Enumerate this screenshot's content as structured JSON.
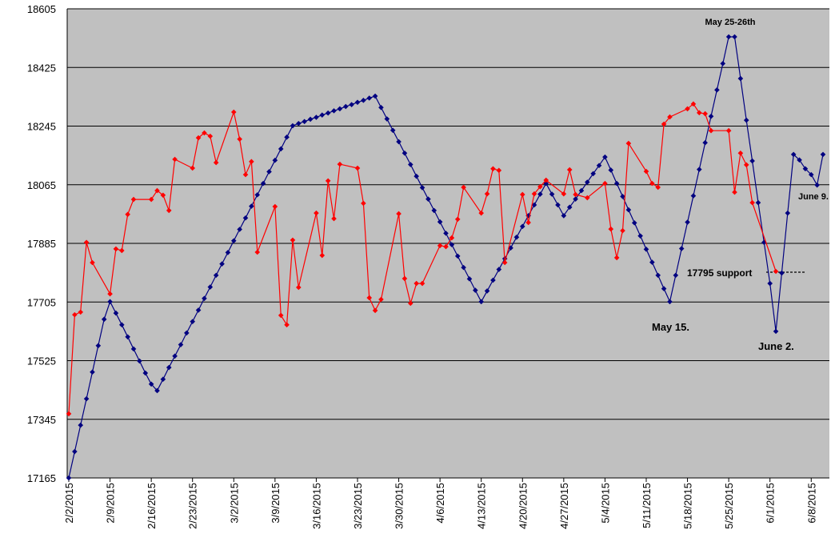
{
  "chart_data": {
    "type": "line",
    "ylim": [
      17165,
      18605
    ],
    "yticks": [
      17165,
      17345,
      17525,
      17705,
      17885,
      18065,
      18245,
      18425,
      18605
    ],
    "xlim": [
      "2/2/2015",
      "6/10/2015"
    ],
    "xticks": [
      "2/2/2015",
      "2/9/2015",
      "2/16/2015",
      "2/23/2015",
      "3/2/2015",
      "3/9/2015",
      "3/16/2015",
      "3/23/2015",
      "3/30/2015",
      "4/6/2015",
      "4/13/2015",
      "4/20/2015",
      "4/27/2015",
      "5/4/2015",
      "5/11/2015",
      "5/18/2015",
      "5/25/2015",
      "6/1/2015",
      "6/8/2015"
    ],
    "grid": true,
    "annotations": [
      "May 25-26th",
      "17795 support",
      "May 15.",
      "June 2.",
      "June 9."
    ],
    "series": [
      {
        "color": "#000080",
        "x": [
          "2/2/2015",
          "2/3/2015",
          "2/4/2015",
          "2/5/2015",
          "2/6/2015",
          "2/7/2015",
          "2/8/2015",
          "2/9/2015",
          "2/10/2015",
          "2/11/2015",
          "2/12/2015",
          "2/13/2015",
          "2/14/2015",
          "2/15/2015",
          "2/16/2015",
          "2/17/2015",
          "2/18/2015",
          "2/19/2015",
          "2/20/2015",
          "2/21/2015",
          "2/22/2015",
          "2/23/2015",
          "2/24/2015",
          "2/25/2015",
          "2/26/2015",
          "2/27/2015",
          "2/28/2015",
          "3/1/2015",
          "3/2/2015",
          "3/3/2015",
          "3/4/2015",
          "3/5/2015",
          "3/6/2015",
          "3/7/2015",
          "3/8/2015",
          "3/9/2015",
          "3/10/2015",
          "3/11/2015",
          "3/12/2015",
          "3/13/2015",
          "3/14/2015",
          "3/15/2015",
          "3/16/2015",
          "3/17/2015",
          "3/18/2015",
          "3/19/2015",
          "3/20/2015",
          "3/21/2015",
          "3/22/2015",
          "3/23/2015",
          "3/24/2015",
          "3/25/2015",
          "3/26/2015",
          "3/27/2015",
          "3/28/2015",
          "3/29/2015",
          "3/30/2015",
          "3/31/2015",
          "4/1/2015",
          "4/2/2015",
          "4/3/2015",
          "4/4/2015",
          "4/5/2015",
          "4/6/2015",
          "4/7/2015",
          "4/8/2015",
          "4/9/2015",
          "4/10/2015",
          "4/11/2015",
          "4/12/2015",
          "4/13/2015",
          "4/14/2015",
          "4/15/2015",
          "4/16/2015",
          "4/17/2015",
          "4/18/2015",
          "4/19/2015",
          "4/20/2015",
          "4/21/2015",
          "4/22/2015",
          "4/23/2015",
          "4/24/2015",
          "4/25/2015",
          "4/26/2015",
          "4/27/2015",
          "4/28/2015",
          "4/29/2015",
          "4/30/2015",
          "5/1/2015",
          "5/2/2015",
          "5/3/2015",
          "5/4/2015",
          "5/5/2015",
          "5/6/2015",
          "5/7/2015",
          "5/8/2015",
          "5/9/2015",
          "5/10/2015",
          "5/11/2015",
          "5/12/2015",
          "5/13/2015",
          "5/14/2015",
          "5/15/2015",
          "5/16/2015",
          "5/17/2015",
          "5/18/2015",
          "5/19/2015",
          "5/20/2015",
          "5/21/2015",
          "5/22/2015",
          "5/23/2015",
          "5/24/2015",
          "5/25/2015",
          "5/26/2015",
          "5/27/2015",
          "5/28/2015",
          "5/29/2015",
          "5/30/2015",
          "5/31/2015",
          "6/1/2015",
          "6/2/2015",
          "6/3/2015",
          "6/4/2015",
          "6/5/2015",
          "6/6/2015",
          "6/7/2015",
          "6/8/2015",
          "6/9/2015",
          "6/10/2015"
        ],
        "values": [
          17165,
          17246,
          17327,
          17408,
          17490,
          17571,
          17652,
          17706,
          17671,
          17635,
          17598,
          17561,
          17524,
          17487,
          17453,
          17433,
          17468,
          17504,
          17539,
          17574,
          17610,
          17645,
          17680,
          17716,
          17751,
          17787,
          17822,
          17857,
          17893,
          17928,
          17963,
          17999,
          18034,
          18069,
          18105,
          18140,
          18175,
          18211,
          18246,
          18253,
          18259,
          18266,
          18272,
          18279,
          18285,
          18292,
          18298,
          18305,
          18311,
          18318,
          18324,
          18331,
          18337,
          18302,
          18267,
          18232,
          18197,
          18162,
          18127,
          18091,
          18056,
          18021,
          17986,
          17951,
          17916,
          17881,
          17846,
          17811,
          17776,
          17741,
          17706,
          17739,
          17772,
          17805,
          17838,
          17871,
          17904,
          17937,
          17970,
          18003,
          18036,
          18069,
          18036,
          18003,
          17970,
          17996,
          18021,
          18047,
          18073,
          18099,
          18124,
          18150,
          18110,
          18069,
          18029,
          17988,
          17948,
          17908,
          17867,
          17827,
          17787,
          17746,
          17706,
          17787,
          17869,
          17950,
          18031,
          18112,
          18194,
          18275,
          18356,
          18437,
          18519,
          18519,
          18391,
          18263,
          18138,
          18010,
          17888,
          17762,
          17615,
          17794,
          17978,
          18158,
          18141,
          18114,
          18096,
          18064,
          18158
        ]
      },
      {
        "color": "#ff0000",
        "x": [
          "2/2/2015",
          "2/3/2015",
          "2/4/2015",
          "2/5/2015",
          "2/6/2015",
          "2/9/2015",
          "2/10/2015",
          "2/11/2015",
          "2/12/2015",
          "2/13/2015",
          "2/16/2015",
          "2/17/2015",
          "2/18/2015",
          "2/19/2015",
          "2/20/2015",
          "2/23/2015",
          "2/24/2015",
          "2/25/2015",
          "2/26/2015",
          "2/27/2015",
          "3/2/2015",
          "3/3/2015",
          "3/4/2015",
          "3/5/2015",
          "3/6/2015",
          "3/9/2015",
          "3/10/2015",
          "3/11/2015",
          "3/12/2015",
          "3/13/2015",
          "3/16/2015",
          "3/17/2015",
          "3/18/2015",
          "3/19/2015",
          "3/20/2015",
          "3/23/2015",
          "3/24/2015",
          "3/25/2015",
          "3/26/2015",
          "3/27/2015",
          "3/30/2015",
          "3/31/2015",
          "4/1/2015",
          "4/2/2015",
          "4/3/2015",
          "4/6/2015",
          "4/7/2015",
          "4/8/2015",
          "4/9/2015",
          "4/10/2015",
          "4/13/2015",
          "4/14/2015",
          "4/15/2015",
          "4/16/2015",
          "4/17/2015",
          "4/20/2015",
          "4/21/2015",
          "4/22/2015",
          "4/23/2015",
          "4/24/2015",
          "4/27/2015",
          "4/28/2015",
          "4/29/2015",
          "5/1/2015",
          "5/4/2015",
          "5/5/2015",
          "5/6/2015",
          "5/7/2015",
          "5/8/2015",
          "5/11/2015",
          "5/12/2015",
          "5/13/2015",
          "5/14/2015",
          "5/15/2015",
          "5/18/2015",
          "5/19/2015",
          "5/20/2015",
          "5/21/2015",
          "5/22/2015",
          "5/25/2015",
          "5/26/2015",
          "5/27/2015",
          "5/28/2015",
          "5/29/2015",
          "6/2/2015"
        ],
        "values": [
          17362,
          17666,
          17674,
          17888,
          17826,
          17730,
          17868,
          17863,
          17974,
          18020,
          18020,
          18047,
          18033,
          17986,
          18143,
          18116,
          18209,
          18224,
          18214,
          18133,
          18288,
          18205,
          18096,
          18136,
          17858,
          17998,
          17664,
          17635,
          17895,
          17750,
          17978,
          17848,
          18077,
          17961,
          18128,
          18116,
          18008,
          17718,
          17679,
          17713,
          17976,
          17777,
          17701,
          17762,
          17762,
          17878,
          17875,
          17902,
          17959,
          18057,
          17978,
          18037,
          18114,
          18109,
          17826,
          18035,
          17949,
          18037,
          18059,
          18079,
          18037,
          18111,
          18035,
          18025,
          18069,
          17929,
          17841,
          17924,
          18192,
          18106,
          18069,
          18057,
          18251,
          18273,
          18298,
          18313,
          18286,
          18283,
          18231,
          18231,
          18042,
          18162,
          18126,
          18010,
          17799
        ]
      }
    ]
  }
}
